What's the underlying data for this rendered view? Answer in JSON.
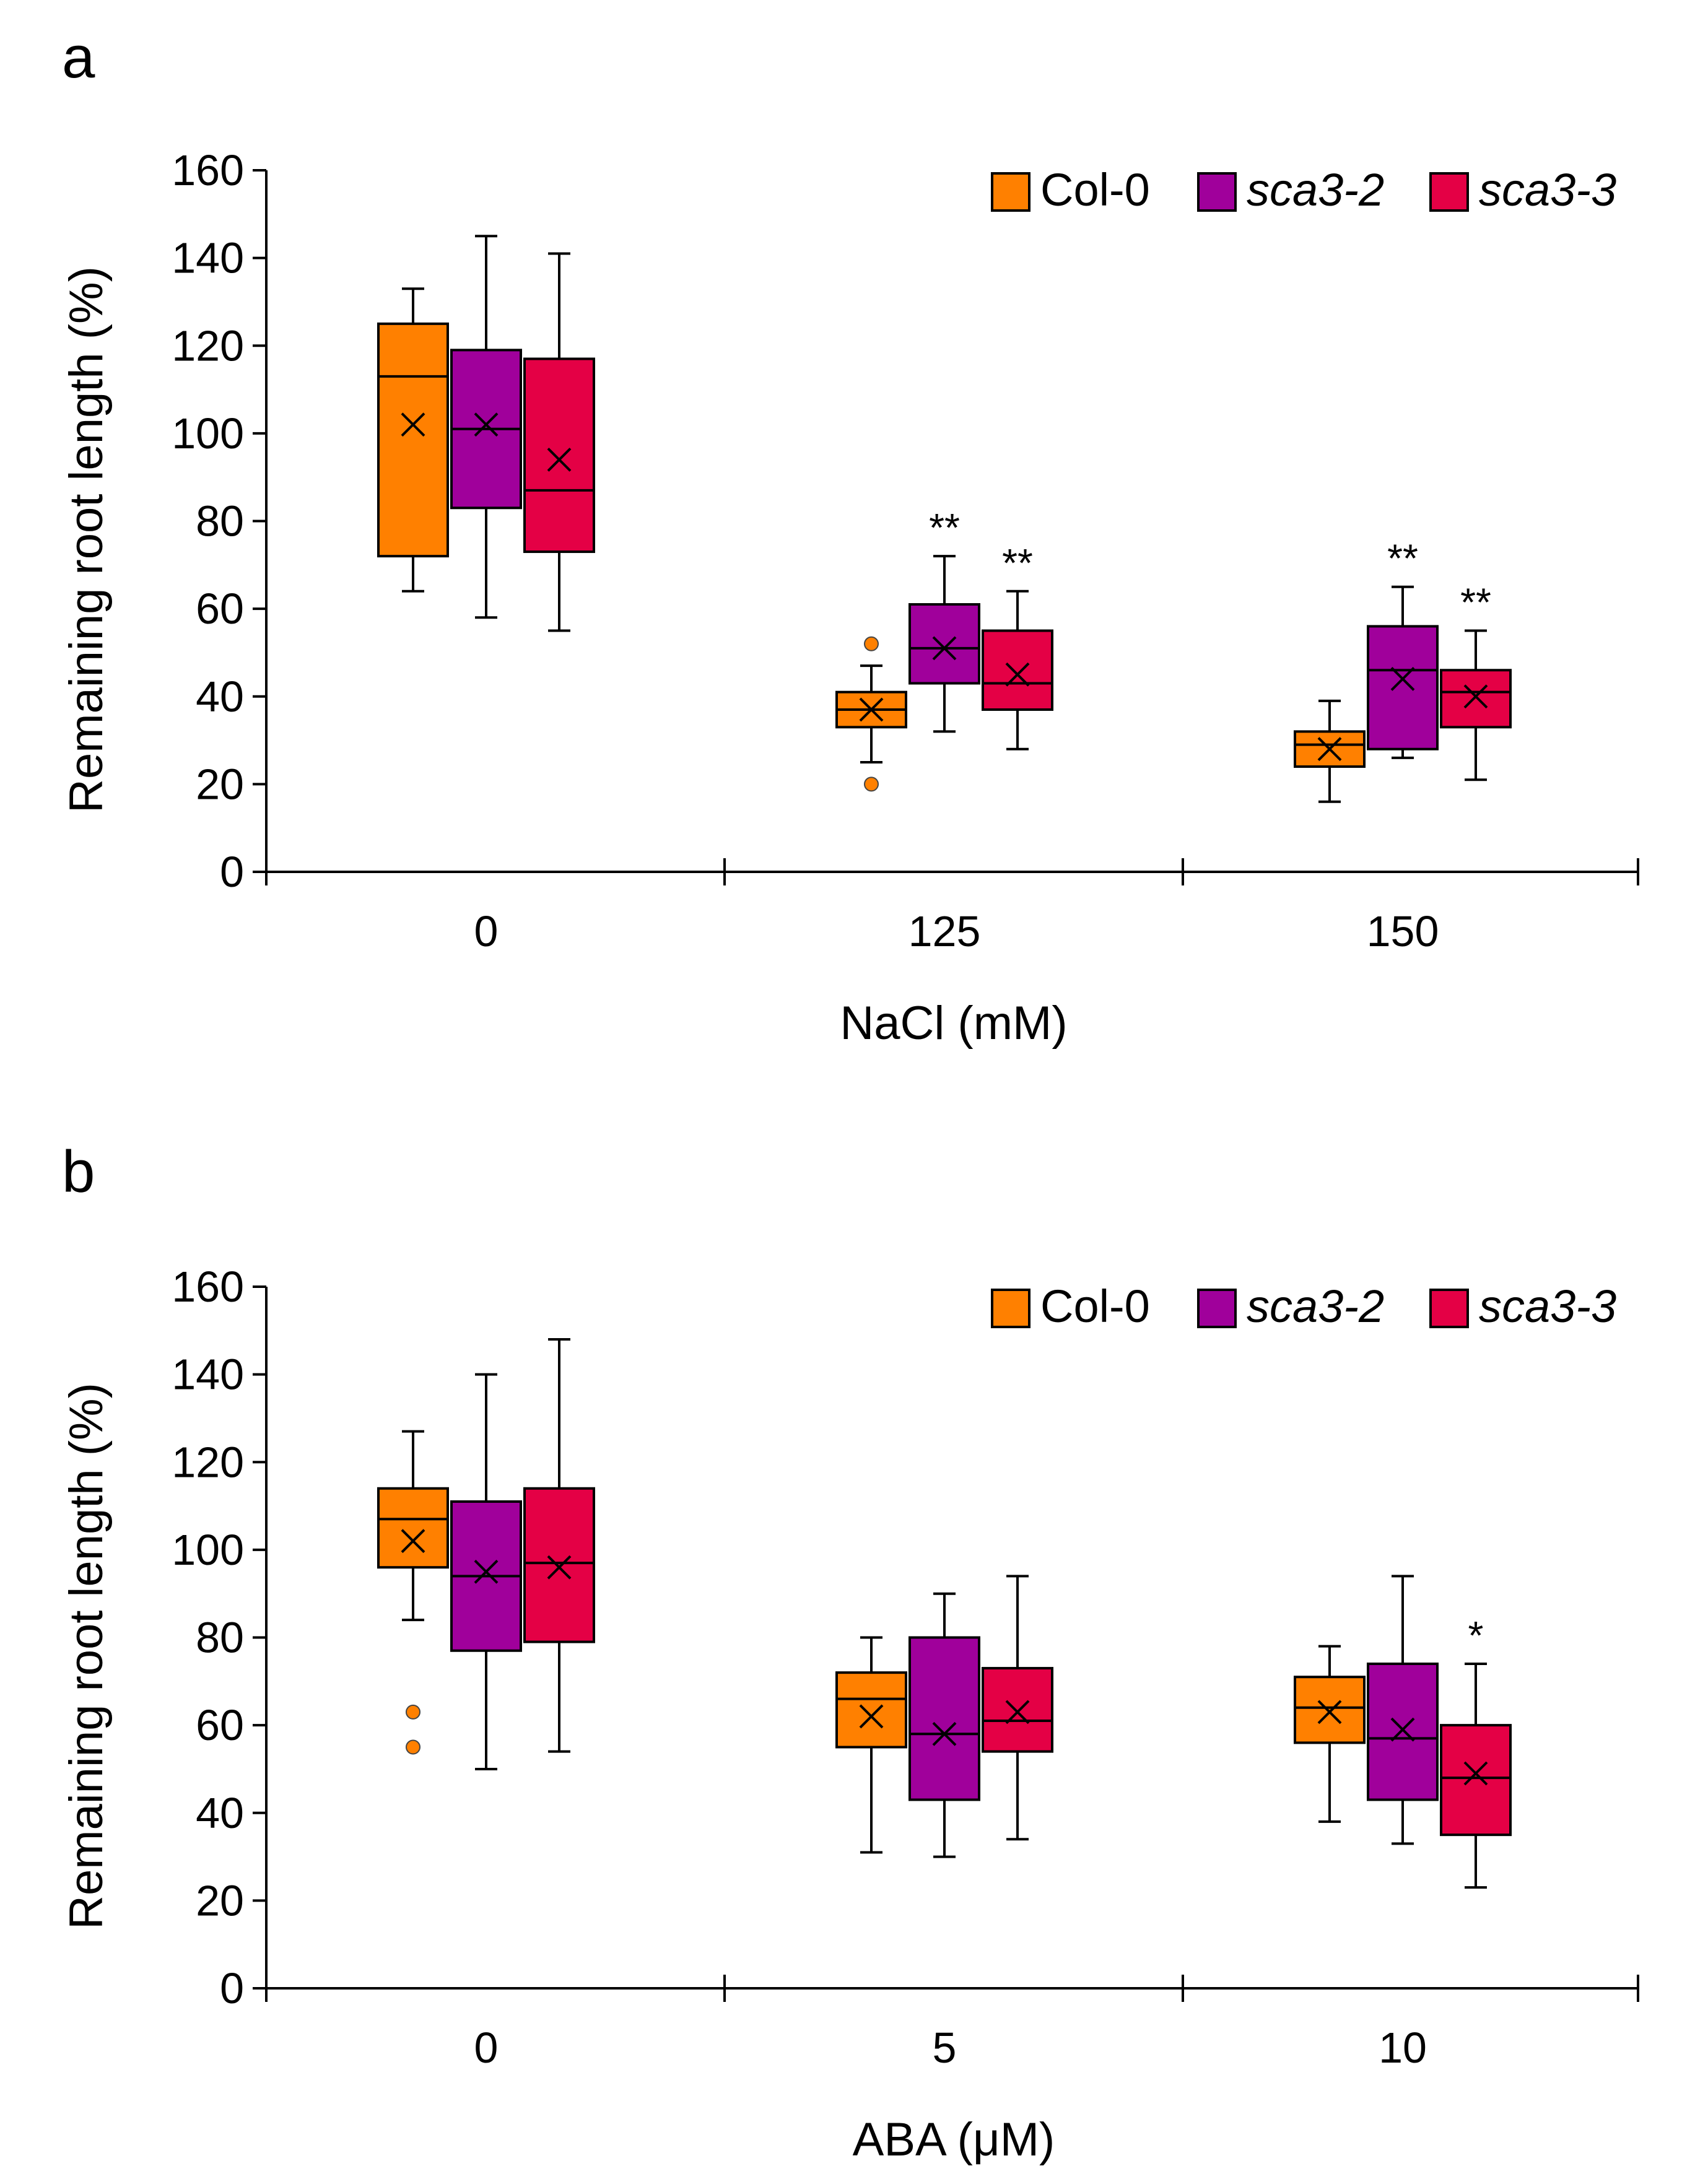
{
  "chart_data": [
    {
      "type": "box",
      "panel": "a",
      "title": "",
      "xlabel": "NaCl (mM)",
      "ylabel": "Remaining root length (%)",
      "ylim": [
        0,
        160
      ],
      "yticks": [
        0,
        20,
        40,
        60,
        80,
        100,
        120,
        140,
        160
      ],
      "categories": [
        "0",
        "125",
        "150"
      ],
      "legend": "top-right",
      "series": [
        {
          "name": "Col-0",
          "italic": false,
          "color": "#ff8000",
          "boxes": [
            {
              "min": 64,
              "q1": 72,
              "median": 113,
              "q3": 125,
              "max": 133,
              "mean": 102,
              "outliers": [],
              "sig": ""
            },
            {
              "min": 25,
              "q1": 33,
              "median": 37,
              "q3": 41,
              "max": 47,
              "mean": 37,
              "outliers": [
                52,
                20
              ],
              "sig": ""
            },
            {
              "min": 16,
              "q1": 24,
              "median": 29,
              "q3": 32,
              "max": 39,
              "mean": 28,
              "outliers": [],
              "sig": ""
            }
          ]
        },
        {
          "name": "sca3-2",
          "italic": true,
          "color": "#a0009b",
          "boxes": [
            {
              "min": 58,
              "q1": 83,
              "median": 101,
              "q3": 119,
              "max": 145,
              "mean": 102,
              "outliers": [],
              "sig": ""
            },
            {
              "min": 32,
              "q1": 43,
              "median": 51,
              "q3": 61,
              "max": 72,
              "mean": 51,
              "outliers": [],
              "sig": "**"
            },
            {
              "min": 26,
              "q1": 28,
              "median": 46,
              "q3": 56,
              "max": 65,
              "mean": 44,
              "outliers": [],
              "sig": "**"
            }
          ]
        },
        {
          "name": "sca3-3",
          "italic": true,
          "color": "#e40045",
          "boxes": [
            {
              "min": 55,
              "q1": 73,
              "median": 87,
              "q3": 117,
              "max": 141,
              "mean": 94,
              "outliers": [],
              "sig": ""
            },
            {
              "min": 28,
              "q1": 37,
              "median": 43,
              "q3": 55,
              "max": 64,
              "mean": 45,
              "outliers": [],
              "sig": "**"
            },
            {
              "min": 21,
              "q1": 33,
              "median": 41,
              "q3": 46,
              "max": 55,
              "mean": 40,
              "outliers": [],
              "sig": "**"
            }
          ]
        }
      ]
    },
    {
      "type": "box",
      "panel": "b",
      "title": "",
      "xlabel": "ABA (μM)",
      "ylabel": "Remaining root length (%)",
      "ylim": [
        0,
        160
      ],
      "yticks": [
        0,
        20,
        40,
        60,
        80,
        100,
        120,
        140,
        160
      ],
      "categories": [
        "0",
        "5",
        "10"
      ],
      "legend": "top-right",
      "series": [
        {
          "name": "Col-0",
          "italic": false,
          "color": "#ff8000",
          "boxes": [
            {
              "min": 84,
              "q1": 96,
              "median": 107,
              "q3": 114,
              "max": 127,
              "mean": 102,
              "outliers": [
                63,
                55
              ],
              "sig": ""
            },
            {
              "min": 31,
              "q1": 55,
              "median": 66,
              "q3": 72,
              "max": 80,
              "mean": 62,
              "outliers": [],
              "sig": ""
            },
            {
              "min": 38,
              "q1": 56,
              "median": 64,
              "q3": 71,
              "max": 78,
              "mean": 63,
              "outliers": [],
              "sig": ""
            }
          ]
        },
        {
          "name": "sca3-2",
          "italic": true,
          "color": "#a0009b",
          "boxes": [
            {
              "min": 50,
              "q1": 77,
              "median": 94,
              "q3": 111,
              "max": 140,
              "mean": 95,
              "outliers": [],
              "sig": ""
            },
            {
              "min": 30,
              "q1": 43,
              "median": 58,
              "q3": 80,
              "max": 90,
              "mean": 58,
              "outliers": [],
              "sig": ""
            },
            {
              "min": 33,
              "q1": 43,
              "median": 57,
              "q3": 74,
              "max": 94,
              "mean": 59,
              "outliers": [],
              "sig": ""
            }
          ]
        },
        {
          "name": "sca3-3",
          "italic": true,
          "color": "#e40045",
          "boxes": [
            {
              "min": 54,
              "q1": 79,
              "median": 97,
              "q3": 114,
              "max": 148,
              "mean": 96,
              "outliers": [],
              "sig": ""
            },
            {
              "min": 34,
              "q1": 54,
              "median": 61,
              "q3": 73,
              "max": 94,
              "mean": 63,
              "outliers": [],
              "sig": ""
            },
            {
              "min": 23,
              "q1": 35,
              "median": 48,
              "q3": 60,
              "max": 74,
              "mean": 49,
              "outliers": [],
              "sig": "*"
            }
          ]
        }
      ]
    }
  ]
}
